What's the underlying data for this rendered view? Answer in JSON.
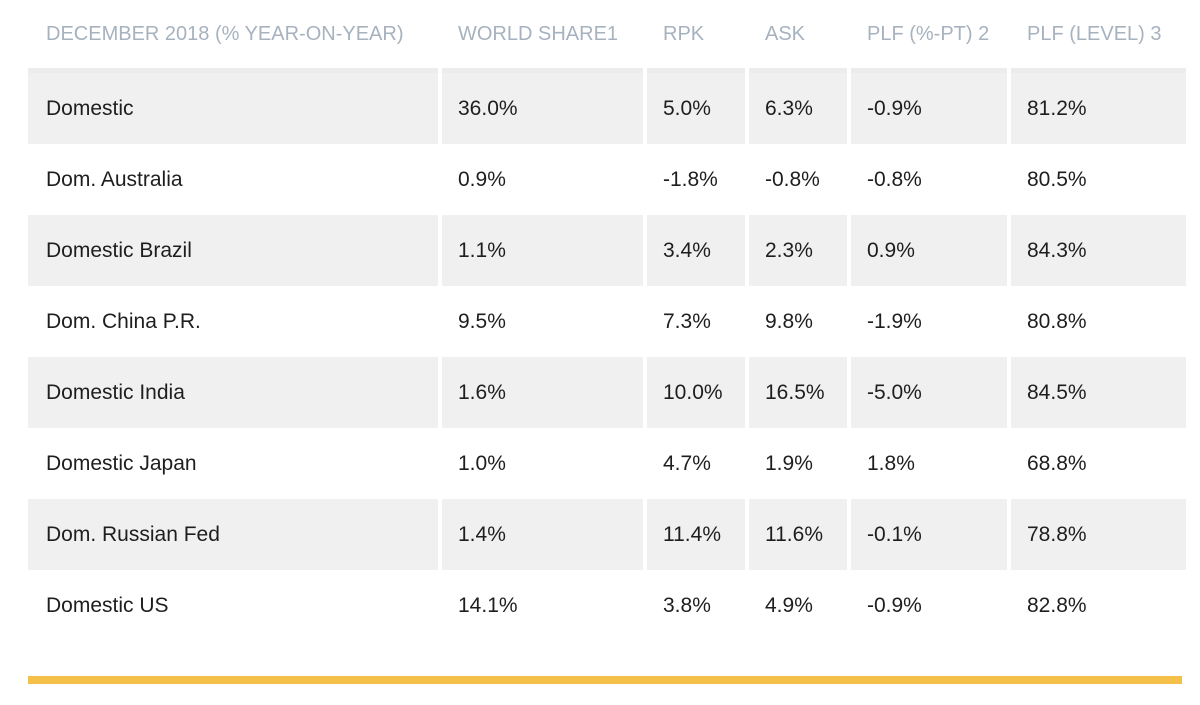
{
  "table": {
    "headers": [
      "DECEMBER 2018 (% YEAR-ON-YEAR)",
      "WORLD SHARE1",
      "RPK",
      "ASK",
      "PLF (%-PT) 2",
      "PLF (LEVEL) 3"
    ],
    "rows": [
      [
        "Domestic",
        "36.0%",
        "5.0%",
        "6.3%",
        "-0.9%",
        "81.2%"
      ],
      [
        "Dom. Australia",
        "0.9%",
        "-1.8%",
        "-0.8%",
        "-0.8%",
        "80.5%"
      ],
      [
        "Domestic Brazil",
        "1.1%",
        "3.4%",
        "2.3%",
        "0.9%",
        "84.3%"
      ],
      [
        "Dom. China P.R.",
        "9.5%",
        "7.3%",
        "9.8%",
        "-1.9%",
        "80.8%"
      ],
      [
        "Domestic India",
        "1.6%",
        "10.0%",
        "16.5%",
        "-5.0%",
        "84.5%"
      ],
      [
        "Domestic Japan",
        "1.0%",
        "4.7%",
        "1.9%",
        "1.8%",
        "68.8%"
      ],
      [
        "Dom. Russian Fed",
        "1.4%",
        "11.4%",
        "11.6%",
        "-0.1%",
        "78.8%"
      ],
      [
        "Domestic US",
        "14.1%",
        "3.8%",
        "4.9%",
        "-0.9%",
        "82.8%"
      ]
    ]
  },
  "colors": {
    "header_text": "#a7b2bf",
    "row_stripe": "#f0f0f0",
    "accent_bar": "#f5c04a"
  }
}
